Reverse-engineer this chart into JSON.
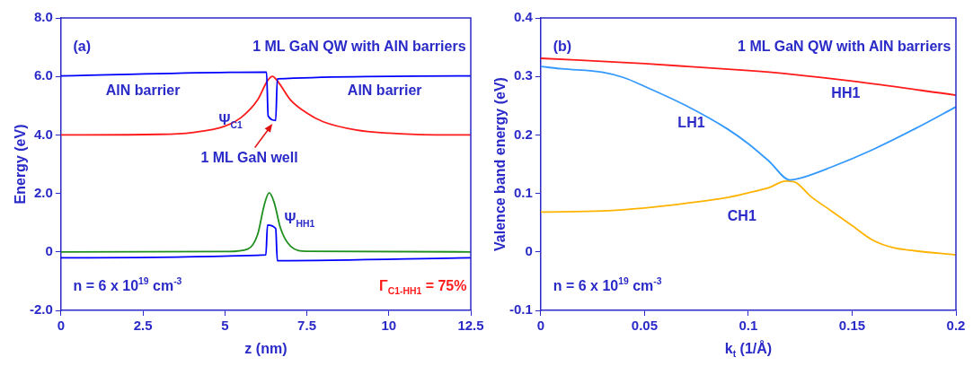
{
  "chart_data": [
    {
      "type": "line",
      "title": "1 ML GaN QW with AlN barriers",
      "xlabel": "z (nm)",
      "ylabel": "Energy (eV)",
      "xlim": [
        0,
        12.5
      ],
      "xticks": [
        0,
        2.5,
        5,
        7.5,
        10,
        12.5
      ],
      "ylim": [
        -2,
        8
      ],
      "yticks": [
        {
          "value": -2,
          "label": "-2.0"
        },
        0,
        {
          "value": 2,
          "label": "2.0"
        },
        {
          "value": 4,
          "label": "4.0"
        },
        {
          "value": 6,
          "label": "6.0"
        },
        {
          "value": 8,
          "label": "8.0"
        }
      ],
      "grid": false,
      "legend": false,
      "marker": "none",
      "annotations": [
        "(a)",
        "AlN barrier",
        "AlN barrier",
        {
          "text": "1 ML GaN well",
          "x": 6.45,
          "y": 4.5
        },
        "n = 6 x 10$^{19}$ cm$^{-3}$",
        "Γ$_{C1-HH1}$ = 75%"
      ],
      "series": [
        {
          "color": "#0000ff",
          "x": [
            0,
            6.27,
            6.32,
            6.55,
            6.6,
            12.5
          ],
          "values": [
            6.02,
            6.15,
            4.65,
            4.5,
            5.92,
            6.02
          ]
        },
        {
          "color": "#0000ff",
          "x": [
            0,
            6.25,
            6.3,
            6.55,
            6.6,
            12.5
          ],
          "values": [
            -0.2,
            -0.1,
            0.92,
            0.8,
            -0.3,
            -0.2
          ]
        },
        {
          "name": "Ψ$_{C1}$",
          "color": "#ff1a1a",
          "x": [
            0,
            3,
            4,
            5,
            5.5,
            6,
            6.3,
            6.45,
            6.6,
            7,
            7.5,
            8,
            9,
            10,
            11,
            12.5
          ],
          "values": [
            4.0,
            4.02,
            4.08,
            4.3,
            4.6,
            5.2,
            5.85,
            6.0,
            5.85,
            5.2,
            4.75,
            4.45,
            4.17,
            4.06,
            4.01,
            4.0
          ]
        },
        {
          "name": "Ψ$_{HH1}$",
          "color": "#1f8f1f",
          "x": [
            0,
            5,
            5.7,
            6,
            6.2,
            6.35,
            6.5,
            6.7,
            7,
            7.5,
            12.5
          ],
          "values": [
            0,
            0.01,
            0.1,
            0.6,
            1.6,
            2.02,
            1.7,
            0.8,
            0.2,
            0.02,
            0
          ]
        }
      ]
    },
    {
      "type": "line",
      "title": "1 ML GaN QW with AlN barriers",
      "xlabel": "k$_{t}$ (1/Å)",
      "ylabel": "Valence band energy (eV)",
      "xlim": [
        0,
        0.2
      ],
      "xticks": [
        0,
        0.05,
        0.1,
        0.15,
        0.2
      ],
      "ylim": [
        -0.1,
        0.4
      ],
      "yticks": [
        -0.1,
        0,
        0.1,
        0.2,
        0.3,
        0.4
      ],
      "grid": false,
      "legend": false,
      "marker": "none",
      "annotations": [
        "(b)",
        "n = 6 x 10$^{19}$ cm$^{-3}$"
      ],
      "series": [
        {
          "name": "HH1",
          "color": "#ff1a1a",
          "x": [
            0,
            0.05,
            0.1,
            0.12,
            0.15,
            0.2
          ],
          "values": [
            0.331,
            0.322,
            0.31,
            0.304,
            0.292,
            0.268
          ]
        },
        {
          "name": "LH1",
          "color": "#3399ff",
          "x": [
            0,
            0.01,
            0.03,
            0.04,
            0.05,
            0.07,
            0.09,
            0.1,
            0.11,
            0.12,
            0.125,
            0.14,
            0.16,
            0.18,
            0.2
          ],
          "values": [
            0.317,
            0.313,
            0.307,
            0.298,
            0.283,
            0.25,
            0.21,
            0.185,
            0.155,
            0.123,
            0.126,
            0.145,
            0.175,
            0.21,
            0.248
          ]
        },
        {
          "name": "CH1",
          "color": "#ffb300",
          "x": [
            0,
            0.03,
            0.05,
            0.07,
            0.09,
            0.1,
            0.11,
            0.118,
            0.122,
            0.13,
            0.14,
            0.15,
            0.16,
            0.17,
            0.18,
            0.2
          ],
          "values": [
            0.068,
            0.07,
            0.075,
            0.083,
            0.093,
            0.101,
            0.11,
            0.121,
            0.12,
            0.095,
            0.07,
            0.045,
            0.02,
            0.007,
            0.002,
            -0.005
          ]
        }
      ]
    }
  ]
}
